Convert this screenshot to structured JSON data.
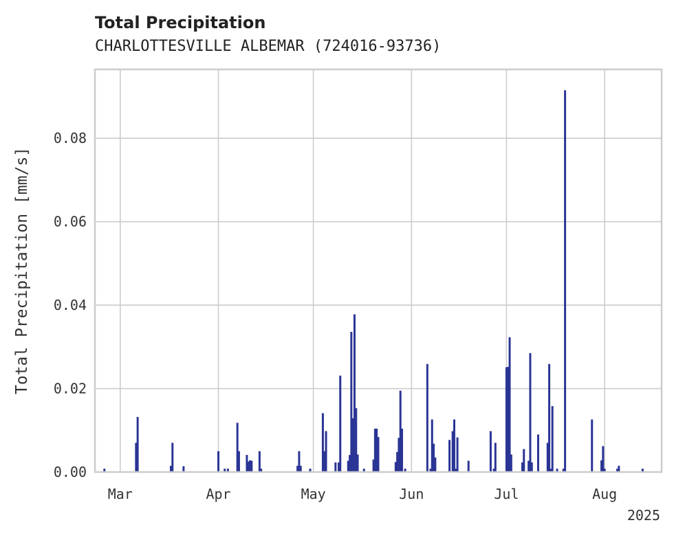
{
  "chart_data": {
    "type": "bar",
    "title": "Total Precipitation",
    "subtitle": "CHARLOTTESVILLE ALBEMAR (724016-93736)",
    "ylabel": "Total Precipitation [mm/s]",
    "xlabel": "",
    "year_label": "2025",
    "xlim": [
      "2025-02-21",
      "2025-08-19"
    ],
    "ylim": [
      0,
      0.0965
    ],
    "yticks": [
      0,
      0.02,
      0.04,
      0.06,
      0.08
    ],
    "ytick_labels": [
      "0.00",
      "0.02",
      "0.04",
      "0.06",
      "0.08"
    ],
    "xticks": [
      {
        "date": "2025-03-01",
        "label": "Mar"
      },
      {
        "date": "2025-04-01",
        "label": "Apr"
      },
      {
        "date": "2025-05-01",
        "label": "May"
      },
      {
        "date": "2025-06-01",
        "label": "Jun"
      },
      {
        "date": "2025-07-01",
        "label": "Jul"
      },
      {
        "date": "2025-08-01",
        "label": "Aug"
      }
    ],
    "grid": true,
    "color": "#2b3595",
    "series": [
      {
        "points": [
          [
            "2025-02-24",
            0.0008
          ],
          [
            "2025-03-06",
            0.007
          ],
          [
            "2025-03-06T12",
            0.0132
          ],
          [
            "2025-03-17",
            0.0015
          ],
          [
            "2025-03-17T12",
            0.007
          ],
          [
            "2025-03-21",
            0.0014
          ],
          [
            "2025-04-01",
            0.005
          ],
          [
            "2025-04-03",
            0.0008
          ],
          [
            "2025-04-04",
            0.0008
          ],
          [
            "2025-04-07",
            0.0118
          ],
          [
            "2025-04-07T12",
            0.005
          ],
          [
            "2025-04-10",
            0.0041
          ],
          [
            "2025-04-10T12",
            0.0025
          ],
          [
            "2025-04-11",
            0.0028
          ],
          [
            "2025-04-11T12",
            0.0027
          ],
          [
            "2025-04-14",
            0.005
          ],
          [
            "2025-04-14T12",
            0.0008
          ],
          [
            "2025-04-26",
            0.0015
          ],
          [
            "2025-04-26T12",
            0.005
          ],
          [
            "2025-04-27",
            0.0015
          ],
          [
            "2025-04-30",
            0.0008
          ],
          [
            "2025-05-04",
            0.0141
          ],
          [
            "2025-05-04T12",
            0.005
          ],
          [
            "2025-05-05",
            0.0098
          ],
          [
            "2025-05-08",
            0.0023
          ],
          [
            "2025-05-09",
            0.0023
          ],
          [
            "2025-05-09T12",
            0.0231
          ],
          [
            "2025-05-12",
            0.0027
          ],
          [
            "2025-05-12T12",
            0.0041
          ],
          [
            "2025-05-13",
            0.0336
          ],
          [
            "2025-05-13T12",
            0.0129
          ],
          [
            "2025-05-14",
            0.0378
          ],
          [
            "2025-05-14T12",
            0.0153
          ],
          [
            "2025-05-15",
            0.0042
          ],
          [
            "2025-05-17",
            0.0008
          ],
          [
            "2025-05-20",
            0.003
          ],
          [
            "2025-05-20T12",
            0.0104
          ],
          [
            "2025-05-21",
            0.0104
          ],
          [
            "2025-05-21T12",
            0.0084
          ],
          [
            "2025-05-27",
            0.0024
          ],
          [
            "2025-05-27T12",
            0.0048
          ],
          [
            "2025-05-28",
            0.0082
          ],
          [
            "2025-05-28T12",
            0.0195
          ],
          [
            "2025-05-29",
            0.0104
          ],
          [
            "2025-05-30",
            0.0008
          ],
          [
            "2025-06-06",
            0.0259
          ],
          [
            "2025-06-07",
            0.0008
          ],
          [
            "2025-06-07T12",
            0.0126
          ],
          [
            "2025-06-08",
            0.0068
          ],
          [
            "2025-06-08T12",
            0.0035
          ],
          [
            "2025-06-13",
            0.0077
          ],
          [
            "2025-06-14",
            0.0098
          ],
          [
            "2025-06-14T12",
            0.0126
          ],
          [
            "2025-06-15",
            0.0008
          ],
          [
            "2025-06-15T12",
            0.0083
          ],
          [
            "2025-06-19",
            0.0027
          ],
          [
            "2025-06-26",
            0.0098
          ],
          [
            "2025-06-27",
            0.0008
          ],
          [
            "2025-06-27T12",
            0.007
          ],
          [
            "2025-07-01",
            0.0251
          ],
          [
            "2025-07-01T12",
            0.0252
          ],
          [
            "2025-07-02",
            0.0323
          ],
          [
            "2025-07-02T12",
            0.0042
          ],
          [
            "2025-07-06",
            0.0023
          ],
          [
            "2025-07-06T12",
            0.0055
          ],
          [
            "2025-07-08",
            0.0027
          ],
          [
            "2025-07-08T12",
            0.0285
          ],
          [
            "2025-07-09",
            0.0023
          ],
          [
            "2025-07-11",
            0.009
          ],
          [
            "2025-07-14",
            0.007
          ],
          [
            "2025-07-14T12",
            0.0259
          ],
          [
            "2025-07-15",
            0.0008
          ],
          [
            "2025-07-15T12",
            0.0158
          ],
          [
            "2025-07-17",
            0.0008
          ],
          [
            "2025-07-19",
            0.0008
          ],
          [
            "2025-07-19T12",
            0.0915
          ],
          [
            "2025-07-28",
            0.0126
          ],
          [
            "2025-07-31",
            0.0028
          ],
          [
            "2025-07-31T12",
            0.0062
          ],
          [
            "2025-08-01",
            0.0008
          ],
          [
            "2025-08-05",
            0.0008
          ],
          [
            "2025-08-05T12",
            0.0015
          ],
          [
            "2025-08-13",
            0.0008
          ]
        ]
      }
    ]
  }
}
